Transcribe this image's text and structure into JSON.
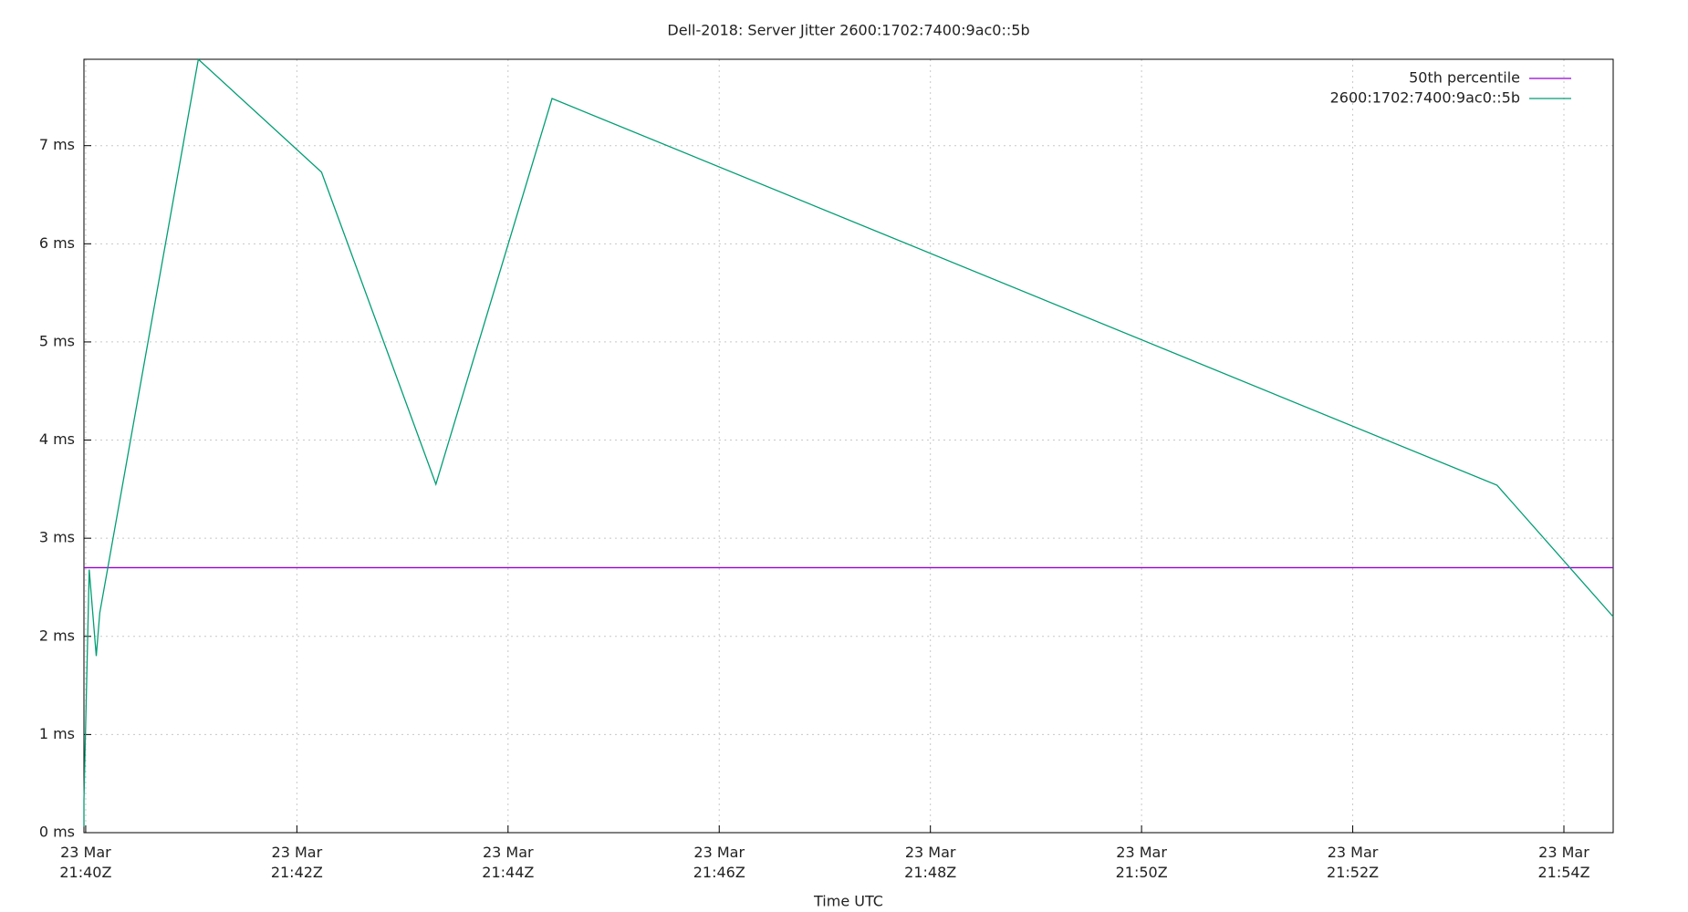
{
  "chart_data": {
    "type": "line",
    "title": "Dell-2018: Server Jitter 2600:1702:7400:9ac0::5b",
    "x_label": "Time UTC",
    "x": [
      "23 Mar 21:39:59Z",
      "23 Mar 21:39:59Z",
      "23 Mar 21:40:02Z",
      "23 Mar 21:40:06Z",
      "23 Mar 21:40:08Z",
      "23 Mar 21:41:04Z",
      "23 Mar 21:42:14Z",
      "23 Mar 21:43:19Z",
      "23 Mar 21:44:25Z",
      "23 Mar 21:53:22Z",
      "23 Mar 21:54:28Z"
    ],
    "series": [
      {
        "name": "50th percentile",
        "color": "#9400d3",
        "value": 2.7
      },
      {
        "name": "2600:1702:7400:9ac0::5b",
        "color": "#009e73",
        "values": [
          0.06,
          0.33,
          2.68,
          1.8,
          2.24,
          7.88,
          6.73,
          3.55,
          7.48,
          3.54,
          2.2
        ]
      }
    ],
    "xlim": [
      "23 Mar 21:39:59Z",
      "23 Mar 21:54:28Z"
    ],
    "xticks": [
      {
        "value": "23 Mar 21:40Z",
        "label": "23 Mar 21:40Z"
      },
      {
        "value": "23 Mar 21:42Z",
        "label": "23 Mar 21:42Z"
      },
      {
        "value": "23 Mar 21:44Z",
        "label": "23 Mar 21:44Z"
      },
      {
        "value": "23 Mar 21:46Z",
        "label": "23 Mar 21:46Z"
      },
      {
        "value": "23 Mar 21:48Z",
        "label": "23 Mar 21:48Z"
      },
      {
        "value": "23 Mar 21:50Z",
        "label": "23 Mar 21:50Z"
      },
      {
        "value": "23 Mar 21:52Z",
        "label": "23 Mar 21:52Z"
      },
      {
        "value": "23 Mar 21:54Z",
        "label": "23 Mar 21:54Z"
      }
    ],
    "ylim": [
      0,
      7.88
    ],
    "yticks": [
      {
        "value": 0,
        "label": "0 ms"
      },
      {
        "value": 1,
        "label": "1 ms"
      },
      {
        "value": 2,
        "label": "2 ms"
      },
      {
        "value": 3,
        "label": "3 ms"
      },
      {
        "value": 4,
        "label": "4 ms"
      },
      {
        "value": 5,
        "label": "5 ms"
      },
      {
        "value": 6,
        "label": "6 ms"
      },
      {
        "value": 7,
        "label": "7 ms"
      }
    ],
    "grid": true,
    "legend": "top-right"
  }
}
